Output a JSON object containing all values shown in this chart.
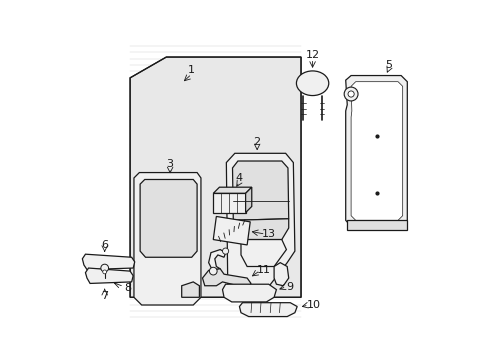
{
  "bg_color": "#ffffff",
  "lc": "#1a1a1a",
  "hatch_color": "#cccccc",
  "fill_white": "#ffffff",
  "fill_light": "#f0f0f0",
  "fill_mid": "#e0e0e0",
  "lw": 0.9
}
